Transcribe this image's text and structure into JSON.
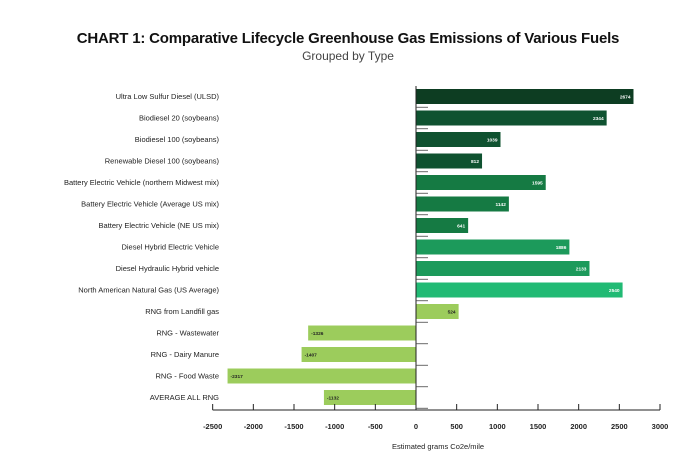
{
  "title": "CHART 1: Comparative Lifecycle Greenhouse Gas Emissions of Various Fuels",
  "subtitle": "Grouped by Type",
  "chart_data": {
    "type": "bar",
    "orientation": "horizontal",
    "title": "CHART 1: Comparative Lifecycle Greenhouse Gas Emissions of Various Fuels",
    "subtitle": "Grouped by Type",
    "xlabel": "Estimated grams Co2e/mile",
    "ylabel": "",
    "xlim": [
      -2500,
      3000
    ],
    "xticks": [
      -2500,
      -2000,
      -1500,
      -1000,
      -500,
      0,
      500,
      1000,
      1500,
      2000,
      2500,
      3000
    ],
    "grid": false,
    "legend": "none",
    "categories": [
      "Ultra Low Sulfur Diesel (ULSD)",
      "Biodiesel 20 (soybeans)",
      "Biodiesel 100 (soybeans)",
      "Renewable Diesel 100 (soybeans)",
      "Battery Electric Vehicle (northern Midwest mix)",
      "Battery Electric Vehicle (Average US mix)",
      "Battery Electric Vehicle (NE US mix)",
      "Diesel Hybrid Electric Vehicle",
      "Diesel Hydraulic Hybrid vehicle",
      "North American Natural Gas (US Average)",
      "RNG from Landfill gas",
      "RNG - Wastewater",
      "RNG - Dairy Manure",
      "RNG - Food Waste",
      "AVERAGE ALL RNG"
    ],
    "values": [
      2674,
      2344,
      1039,
      812,
      1595,
      1142,
      641,
      1886,
      2133,
      2540,
      524,
      -1326,
      -1407,
      -2317,
      -1132
    ],
    "value_labels": [
      "2674",
      "2344",
      "1039",
      "812",
      "1595",
      "1142",
      "641",
      "1886",
      "2133",
      "2540",
      "524",
      "-1326",
      "-1407",
      "-2317",
      "-1132"
    ],
    "colors": [
      "#0d3d22",
      "#0f5230",
      "#0f5230",
      "#0f5230",
      "#157a43",
      "#157a43",
      "#157a43",
      "#1c9a5b",
      "#1c9a5b",
      "#21ba74",
      "#9ccc5c",
      "#9ccc5c",
      "#9ccc5c",
      "#9ccc5c",
      "#9ccc5c"
    ],
    "label_colors": [
      "#ffffff",
      "#ffffff",
      "#ffffff",
      "#ffffff",
      "#ffffff",
      "#ffffff",
      "#ffffff",
      "#ffffff",
      "#ffffff",
      "#ffffff",
      "#222222",
      "#222222",
      "#222222",
      "#222222",
      "#222222"
    ]
  }
}
